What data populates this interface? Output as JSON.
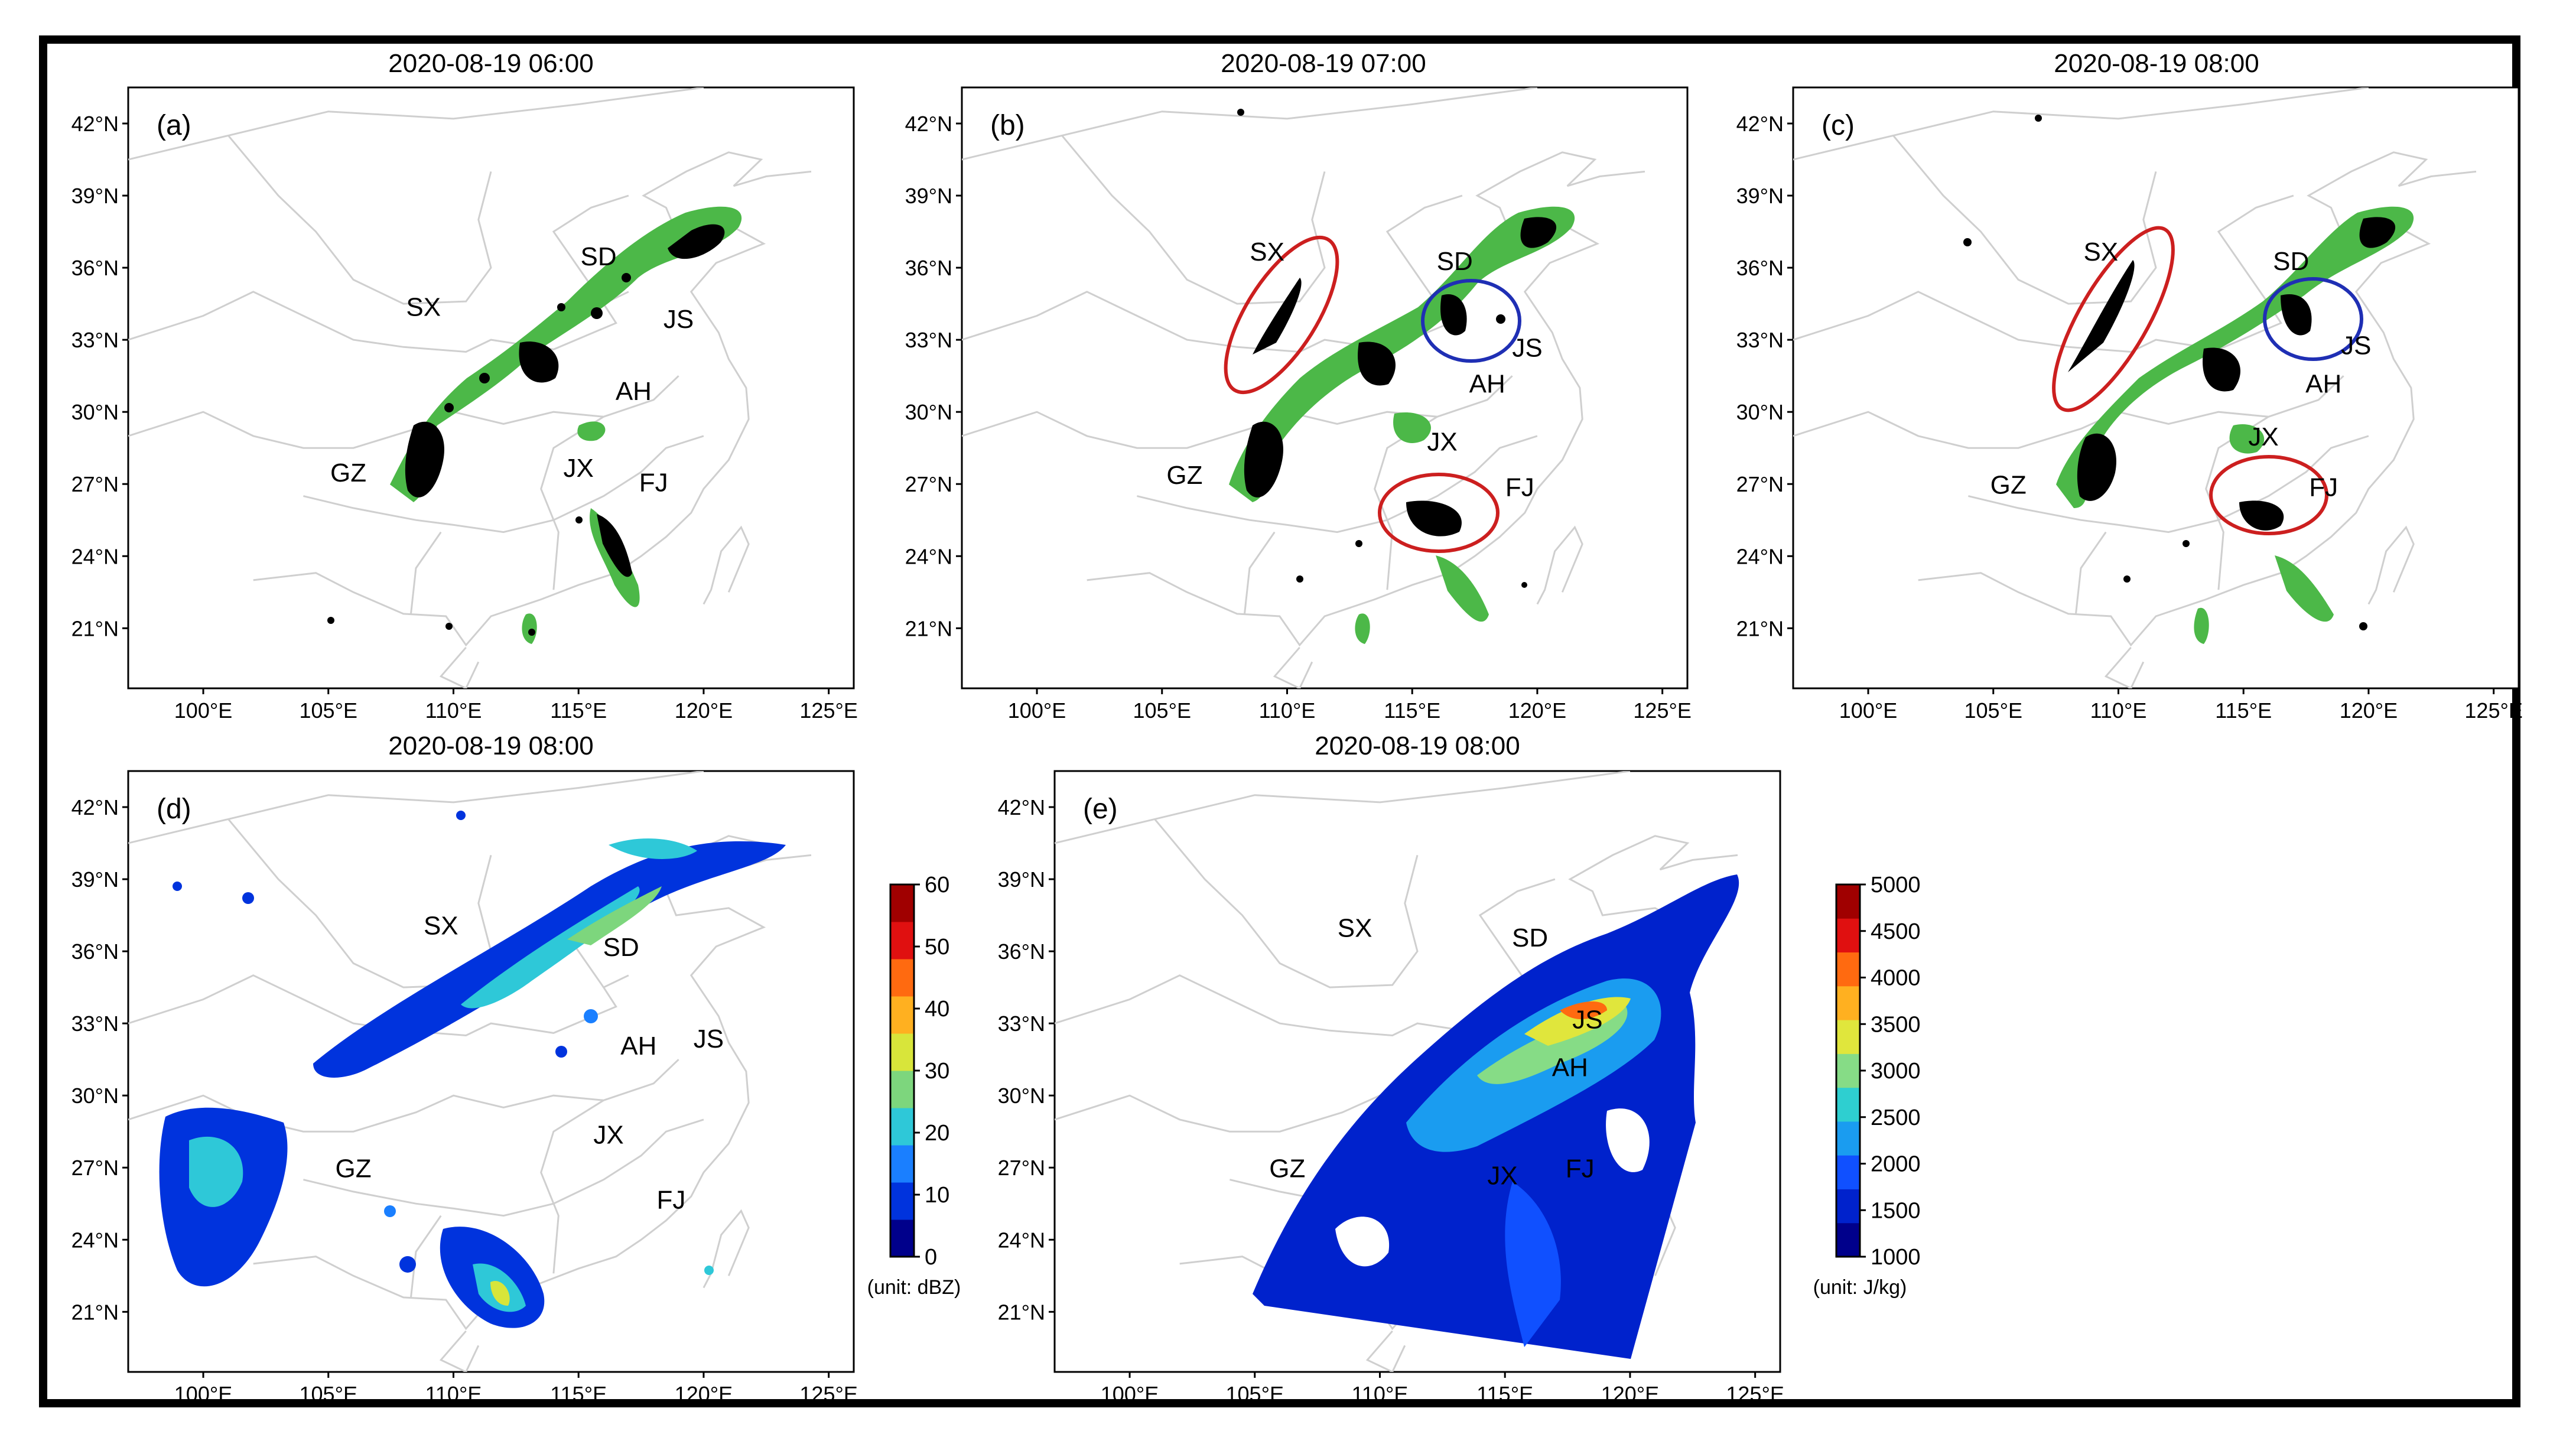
{
  "panels": [
    {
      "id": "a",
      "label": "(a)",
      "title": "2020-08-19 06:00",
      "regions": [
        {
          "name": "SD",
          "lon": 115.8,
          "lat": 36.1
        },
        {
          "name": "SX",
          "lon": 108.8,
          "lat": 34.0
        },
        {
          "name": "JS",
          "lon": 119.0,
          "lat": 33.5
        },
        {
          "name": "AH",
          "lon": 117.2,
          "lat": 30.5
        },
        {
          "name": "GZ",
          "lon": 105.8,
          "lat": 27.1
        },
        {
          "name": "JX",
          "lon": 115.0,
          "lat": 27.3
        },
        {
          "name": "FJ",
          "lon": 118.0,
          "lat": 26.7
        }
      ]
    },
    {
      "id": "b",
      "label": "(b)",
      "title": "2020-08-19 07:00",
      "regions": [
        {
          "name": "SX",
          "lon": 109.2,
          "lat": 36.3
        },
        {
          "name": "SD",
          "lon": 116.7,
          "lat": 35.9
        },
        {
          "name": "JS",
          "lon": 119.6,
          "lat": 32.3
        },
        {
          "name": "AH",
          "lon": 118.0,
          "lat": 30.8
        },
        {
          "name": "JX",
          "lon": 116.2,
          "lat": 28.4
        },
        {
          "name": "GZ",
          "lon": 105.9,
          "lat": 27.0
        },
        {
          "name": "FJ",
          "lon": 119.3,
          "lat": 26.5
        }
      ]
    },
    {
      "id": "c",
      "label": "(c)",
      "title": "2020-08-19 08:00",
      "regions": [
        {
          "name": "SX",
          "lon": 109.3,
          "lat": 36.3
        },
        {
          "name": "SD",
          "lon": 116.9,
          "lat": 35.9
        },
        {
          "name": "JS",
          "lon": 119.5,
          "lat": 32.4
        },
        {
          "name": "AH",
          "lon": 118.2,
          "lat": 30.8
        },
        {
          "name": "JX",
          "lon": 115.8,
          "lat": 28.6
        },
        {
          "name": "GZ",
          "lon": 105.6,
          "lat": 26.6
        },
        {
          "name": "FJ",
          "lon": 118.2,
          "lat": 26.5
        }
      ]
    },
    {
      "id": "d",
      "label": "(d)",
      "title": "2020-08-19 08:00",
      "regions": [
        {
          "name": "SX",
          "lon": 109.5,
          "lat": 36.7
        },
        {
          "name": "SD",
          "lon": 116.7,
          "lat": 35.8
        },
        {
          "name": "AH",
          "lon": 117.4,
          "lat": 31.7
        },
        {
          "name": "JS",
          "lon": 120.2,
          "lat": 32.0
        },
        {
          "name": "JX",
          "lon": 116.2,
          "lat": 28.0
        },
        {
          "name": "GZ",
          "lon": 106.0,
          "lat": 26.6
        },
        {
          "name": "FJ",
          "lon": 118.7,
          "lat": 25.3
        }
      ]
    },
    {
      "id": "e",
      "label": "(e)",
      "title": "2020-08-19 08:00",
      "regions": [
        {
          "name": "SX",
          "lon": 109.0,
          "lat": 36.6
        },
        {
          "name": "SD",
          "lon": 116.0,
          "lat": 36.2
        },
        {
          "name": "JS",
          "lon": 118.3,
          "lat": 32.8
        },
        {
          "name": "AH",
          "lon": 117.6,
          "lat": 30.8
        },
        {
          "name": "GZ",
          "lon": 106.3,
          "lat": 26.6
        },
        {
          "name": "JX",
          "lon": 114.9,
          "lat": 26.3
        },
        {
          "name": "FJ",
          "lon": 118.0,
          "lat": 26.6
        }
      ]
    }
  ],
  "axes": {
    "lon_ticks": [
      "100°E",
      "105°E",
      "110°E",
      "115°E",
      "120°E",
      "125°E"
    ],
    "lat_ticks": [
      "21°N",
      "24°N",
      "27°N",
      "30°N",
      "33°N",
      "36°N",
      "39°N",
      "42°N"
    ],
    "lon_values": [
      100,
      105,
      110,
      115,
      120,
      125
    ],
    "lat_values": [
      21,
      24,
      27,
      30,
      33,
      36,
      39,
      42
    ],
    "lon_range": [
      97,
      126
    ],
    "lat_range": [
      18.5,
      43.5
    ]
  },
  "colorbars": [
    {
      "panel": "d",
      "ticks": [
        "0",
        "10",
        "20",
        "30",
        "40",
        "50",
        "60"
      ],
      "values": [
        0,
        10,
        20,
        30,
        40,
        50,
        60
      ],
      "unit": "(unit: dBZ)",
      "colors": [
        "#00008b",
        "#0033dd",
        "#1a7fff",
        "#2ec8d8",
        "#7dd67d",
        "#d8e53a",
        "#ffb020",
        "#ff6a10",
        "#e01010",
        "#a00000"
      ]
    },
    {
      "panel": "e",
      "ticks": [
        "1000",
        "1500",
        "2000",
        "2500",
        "3000",
        "3500",
        "4000",
        "4500",
        "5000"
      ],
      "values": [
        1000,
        1500,
        2000,
        2500,
        3000,
        3500,
        4000,
        4500,
        5000
      ],
      "unit": "(unit: J/kg)",
      "colors": [
        "#00008b",
        "#0022cc",
        "#1050ff",
        "#1a9cf0",
        "#2ecfd0",
        "#86dc86",
        "#e0e63c",
        "#ffb020",
        "#ff6a10",
        "#e01010",
        "#a00000"
      ]
    }
  ],
  "colors": {
    "observed_echo": "#000000",
    "forecast_echo": "#4cb848",
    "border": "#cfcfcf",
    "red_ellipse": "#cc1f1f",
    "blue_ellipse": "#1f2fb4"
  }
}
